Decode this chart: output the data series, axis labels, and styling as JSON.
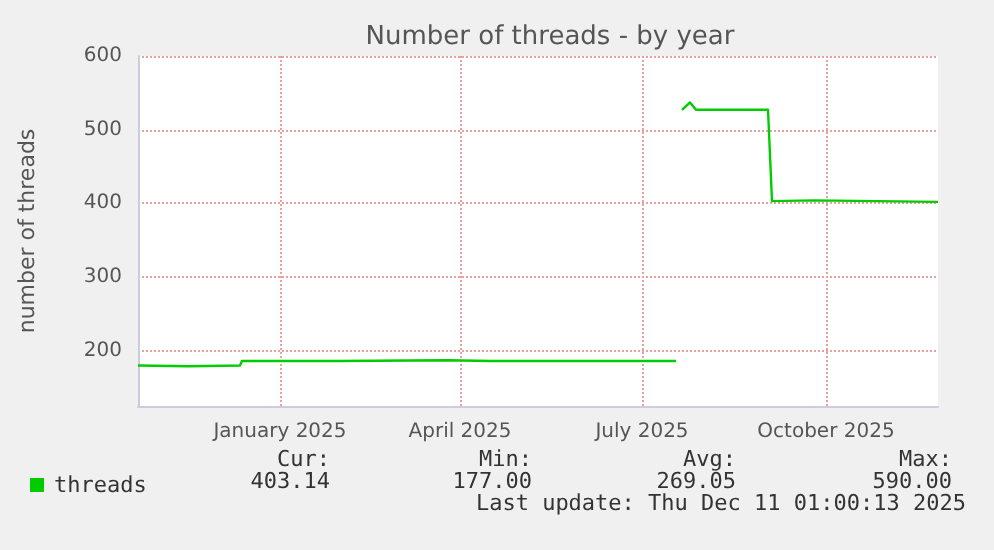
{
  "chart_data": {
    "type": "line",
    "title": "Number of threads - by year",
    "ylabel": "number of threads",
    "xlim": [
      "2024-11-06",
      "2025-12-11"
    ],
    "ylim": [
      125,
      600
    ],
    "yticks": [
      200,
      300,
      400,
      500,
      600
    ],
    "xticks": [
      {
        "value": "2025-01-16",
        "label": "January 2025"
      },
      {
        "value": "2025-04-16",
        "label": "April 2025"
      },
      {
        "value": "2025-07-16",
        "label": "July 2025"
      },
      {
        "value": "2025-10-16",
        "label": "October 2025"
      }
    ],
    "grid": true,
    "legend": "bottom left",
    "marker": "none",
    "line_style": "solid",
    "series": [
      {
        "name": "threads",
        "color": "#00cc00",
        "x": [
          "2024-11-06",
          "2024-12-01",
          "2024-12-27",
          "2024-12-28",
          "2025-02-15",
          "2025-04-10",
          "2025-05-01",
          "2025-08-02",
          "2025-08-03",
          "2025-08-05",
          "2025-08-09",
          "2025-08-12",
          "2025-09-17",
          "2025-09-19",
          "2025-10-10",
          "2025-12-11"
        ],
        "values": [
          180,
          179,
          180,
          186,
          186,
          187,
          186,
          186,
          null,
          527,
          537,
          527,
          527,
          403,
          404,
          402
        ]
      }
    ],
    "annotations": [
      "Cur:",
      "Min:",
      "Avg:",
      "Max:",
      "403.14",
      "177.00",
      "269.05",
      "590.00",
      "Last update: Thu Dec 11 01:00:13 2025"
    ]
  }
}
